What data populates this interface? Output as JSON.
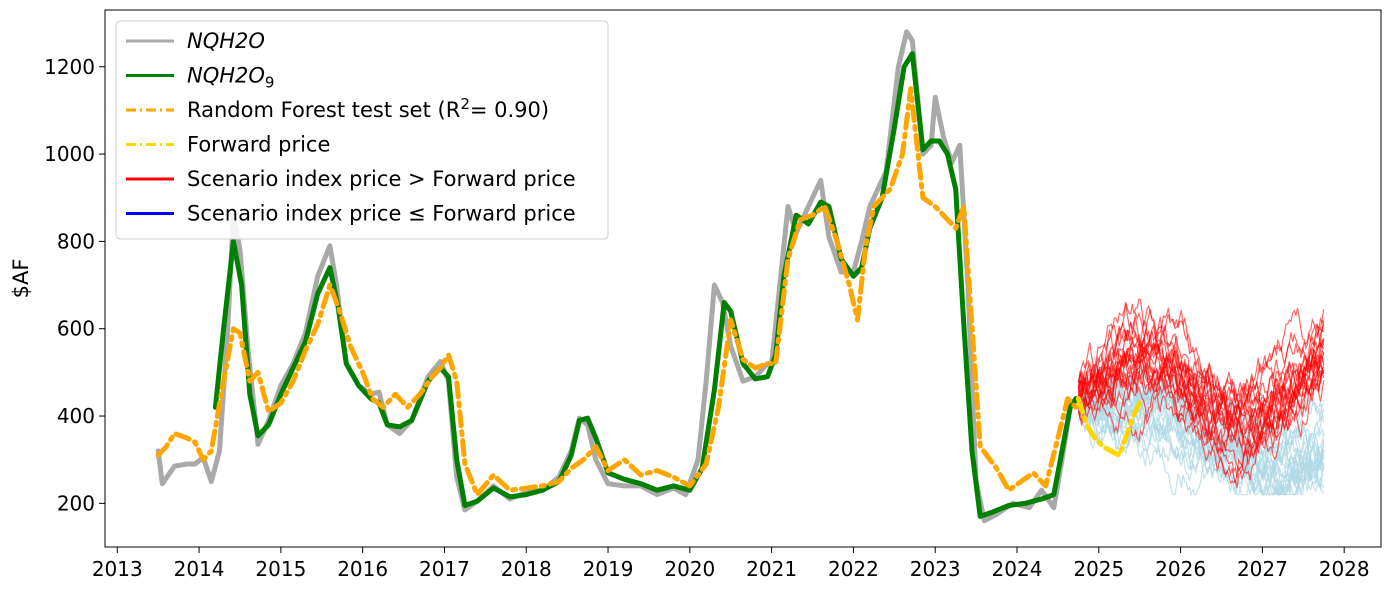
{
  "chart_data": {
    "type": "line",
    "ylabel": "$AF",
    "xlabel": "",
    "xlim": [
      2012.85,
      2028.45
    ],
    "ylim": [
      100,
      1330
    ],
    "x_ticks": [
      2013,
      2014,
      2015,
      2016,
      2017,
      2018,
      2019,
      2020,
      2021,
      2022,
      2023,
      2024,
      2025,
      2026,
      2027,
      2028
    ],
    "x_tick_labels": [
      "2013",
      "2014",
      "2015",
      "2016",
      "2017",
      "2018",
      "2019",
      "2020",
      "2021",
      "2022",
      "2023",
      "2024",
      "2025",
      "2026",
      "2027",
      "2028"
    ],
    "y_ticks": [
      200,
      400,
      600,
      800,
      1000,
      1200
    ],
    "y_tick_labels": [
      "200",
      "400",
      "600",
      "800",
      "1000",
      "1200"
    ],
    "grid": false,
    "legend_position": "top-left",
    "legend": [
      {
        "label": "NQH2O",
        "sub": "",
        "sup": "",
        "suffix": "",
        "italic": true,
        "color": "#a9a9a9",
        "style": "solid"
      },
      {
        "label": "NQH2O",
        "sub": "9",
        "sup": "",
        "suffix": "",
        "italic": true,
        "color": "#008000",
        "style": "solid"
      },
      {
        "label": "Random Forest test set (R",
        "sub": "",
        "sup": "2",
        "suffix": "= 0.90)",
        "italic": false,
        "color": "#ffa500",
        "style": "dashdot"
      },
      {
        "label": "Forward price",
        "sub": "",
        "sup": "",
        "suffix": "",
        "italic": false,
        "color": "#ffd700",
        "style": "dashdot"
      },
      {
        "label": "Scenario index price > Forward price",
        "sub": "",
        "sup": "",
        "suffix": "",
        "italic": false,
        "color": "#ff0000",
        "style": "solid"
      },
      {
        "label": "Scenario index price ≤ Forward price",
        "sub": "",
        "sup": "",
        "suffix": "",
        "italic": false,
        "color": "#0000ff",
        "style": "solid"
      }
    ],
    "series": [
      {
        "name": "NQH2O",
        "color": "#a9a9a9",
        "x": [
          2013.5,
          2013.55,
          2013.7,
          2013.85,
          2013.95,
          2014.05,
          2014.15,
          2014.25,
          2014.35,
          2014.42,
          2014.5,
          2014.6,
          2014.72,
          2014.85,
          2015.0,
          2015.15,
          2015.3,
          2015.45,
          2015.6,
          2015.68,
          2015.8,
          2015.95,
          2016.1,
          2016.2,
          2016.3,
          2016.45,
          2016.6,
          2016.8,
          2016.95,
          2017.05,
          2017.15,
          2017.25,
          2017.4,
          2017.6,
          2017.8,
          2018.0,
          2018.2,
          2018.4,
          2018.55,
          2018.65,
          2018.75,
          2018.85,
          2019.0,
          2019.2,
          2019.4,
          2019.6,
          2019.8,
          2019.95,
          2020.1,
          2020.2,
          2020.3,
          2020.4,
          2020.5,
          2020.65,
          2020.8,
          2020.95,
          2021.0,
          2021.1,
          2021.2,
          2021.3,
          2021.45,
          2021.6,
          2021.7,
          2021.85,
          2022.0,
          2022.1,
          2022.2,
          2022.4,
          2022.55,
          2022.65,
          2022.72,
          2022.85,
          2022.95,
          2023.0,
          2023.1,
          2023.2,
          2023.3,
          2023.4,
          2023.5,
          2023.6,
          2023.75,
          2023.95,
          2024.15,
          2024.3,
          2024.45,
          2024.55,
          2024.65,
          2024.75
        ],
        "y": [
          320,
          245,
          285,
          290,
          290,
          305,
          250,
          320,
          600,
          860,
          780,
          550,
          335,
          390,
          470,
          520,
          590,
          720,
          790,
          700,
          520,
          470,
          450,
          455,
          380,
          360,
          390,
          490,
          525,
          480,
          260,
          185,
          205,
          240,
          210,
          225,
          230,
          260,
          320,
          395,
          380,
          300,
          245,
          240,
          240,
          220,
          235,
          220,
          300,
          480,
          700,
          660,
          560,
          480,
          490,
          520,
          520,
          700,
          880,
          820,
          880,
          940,
          810,
          730,
          730,
          800,
          880,
          960,
          1200,
          1280,
          1260,
          1000,
          1020,
          1130,
          1040,
          980,
          1020,
          700,
          250,
          160,
          175,
          200,
          190,
          230,
          190,
          300,
          420,
          440
        ]
      },
      {
        "name": "NQH2O9",
        "color": "#008000",
        "x": [
          2014.2,
          2014.3,
          2014.42,
          2014.52,
          2014.62,
          2014.72,
          2014.85,
          2015.0,
          2015.15,
          2015.3,
          2015.45,
          2015.6,
          2015.7,
          2015.8,
          2015.95,
          2016.1,
          2016.2,
          2016.3,
          2016.45,
          2016.6,
          2016.8,
          2016.95,
          2017.05,
          2017.15,
          2017.25,
          2017.4,
          2017.6,
          2017.8,
          2018.0,
          2018.2,
          2018.4,
          2018.55,
          2018.65,
          2018.75,
          2018.85,
          2019.0,
          2019.2,
          2019.4,
          2019.6,
          2019.8,
          2020.0,
          2020.15,
          2020.3,
          2020.42,
          2020.5,
          2020.65,
          2020.8,
          2020.95,
          2021.05,
          2021.15,
          2021.3,
          2021.45,
          2021.6,
          2021.7,
          2021.85,
          2022.0,
          2022.1,
          2022.2,
          2022.35,
          2022.5,
          2022.62,
          2022.72,
          2022.85,
          2022.95,
          2023.05,
          2023.15,
          2023.25,
          2023.35,
          2023.45,
          2023.55,
          2023.7,
          2023.9,
          2024.1,
          2024.3,
          2024.45,
          2024.55,
          2024.65,
          2024.72
        ],
        "y": [
          420,
          600,
          800,
          700,
          450,
          355,
          380,
          450,
          510,
          570,
          680,
          740,
          650,
          520,
          470,
          440,
          430,
          380,
          375,
          390,
          480,
          510,
          490,
          300,
          195,
          205,
          235,
          215,
          220,
          230,
          250,
          310,
          390,
          395,
          350,
          270,
          255,
          245,
          230,
          240,
          230,
          280,
          460,
          660,
          640,
          520,
          485,
          490,
          540,
          720,
          860,
          840,
          890,
          880,
          760,
          720,
          740,
          830,
          900,
          1060,
          1200,
          1230,
          1010,
          1030,
          1030,
          1000,
          920,
          610,
          320,
          170,
          180,
          195,
          200,
          210,
          220,
          320,
          420,
          440
        ]
      },
      {
        "name": "Random Forest test set",
        "color": "#ffa500",
        "x": [
          2013.5,
          2013.6,
          2013.7,
          2013.85,
          2013.95,
          2014.05,
          2014.15,
          2014.3,
          2014.42,
          2014.5,
          2014.62,
          2014.72,
          2014.85,
          2015.0,
          2015.15,
          2015.3,
          2015.45,
          2015.6,
          2015.72,
          2015.85,
          2016.0,
          2016.12,
          2016.25,
          2016.4,
          2016.55,
          2016.7,
          2016.85,
          2016.95,
          2017.05,
          2017.15,
          2017.25,
          2017.4,
          2017.6,
          2017.8,
          2018.0,
          2018.2,
          2018.4,
          2018.55,
          2018.7,
          2018.85,
          2019.0,
          2019.2,
          2019.4,
          2019.6,
          2019.8,
          2020.0,
          2020.2,
          2020.35,
          2020.5,
          2020.65,
          2020.8,
          2020.95,
          2021.05,
          2021.2,
          2021.35,
          2021.5,
          2021.65,
          2021.8,
          2021.95,
          2022.05,
          2022.15,
          2022.25,
          2022.45,
          2022.6,
          2022.7,
          2022.85,
          2023.0,
          2023.15,
          2023.25,
          2023.35,
          2023.55,
          2023.75,
          2023.9,
          2024.05,
          2024.2,
          2024.35,
          2024.5,
          2024.62,
          2024.72
        ],
        "y": [
          310,
          330,
          360,
          350,
          340,
          300,
          320,
          480,
          600,
          590,
          480,
          500,
          410,
          430,
          480,
          550,
          610,
          700,
          640,
          560,
          500,
          440,
          420,
          450,
          420,
          450,
          490,
          510,
          540,
          480,
          290,
          220,
          265,
          230,
          235,
          240,
          250,
          280,
          300,
          330,
          275,
          300,
          265,
          275,
          260,
          240,
          290,
          420,
          620,
          530,
          510,
          520,
          520,
          760,
          850,
          860,
          880,
          800,
          700,
          620,
          790,
          880,
          920,
          1000,
          1150,
          900,
          880,
          850,
          830,
          880,
          330,
          280,
          230,
          250,
          270,
          240,
          350,
          440,
          420
        ]
      },
      {
        "name": "Forward price",
        "color": "#ffd700",
        "x": [
          2024.75,
          2024.85,
          2024.95,
          2025.05,
          2025.15,
          2025.25,
          2025.35,
          2025.42,
          2025.5
        ],
        "y": [
          440,
          380,
          350,
          330,
          320,
          310,
          360,
          400,
          430
        ]
      }
    ],
    "scenarios": {
      "x_start": 2024.75,
      "x_end": 2027.75,
      "start_value": 440,
      "above_forward_color": "#ff0000",
      "below_forward_color": "#add8e6",
      "count_above": 22,
      "count_below": 22,
      "above_range": [
        220,
        800
      ],
      "below_range": [
        220,
        800
      ]
    }
  }
}
